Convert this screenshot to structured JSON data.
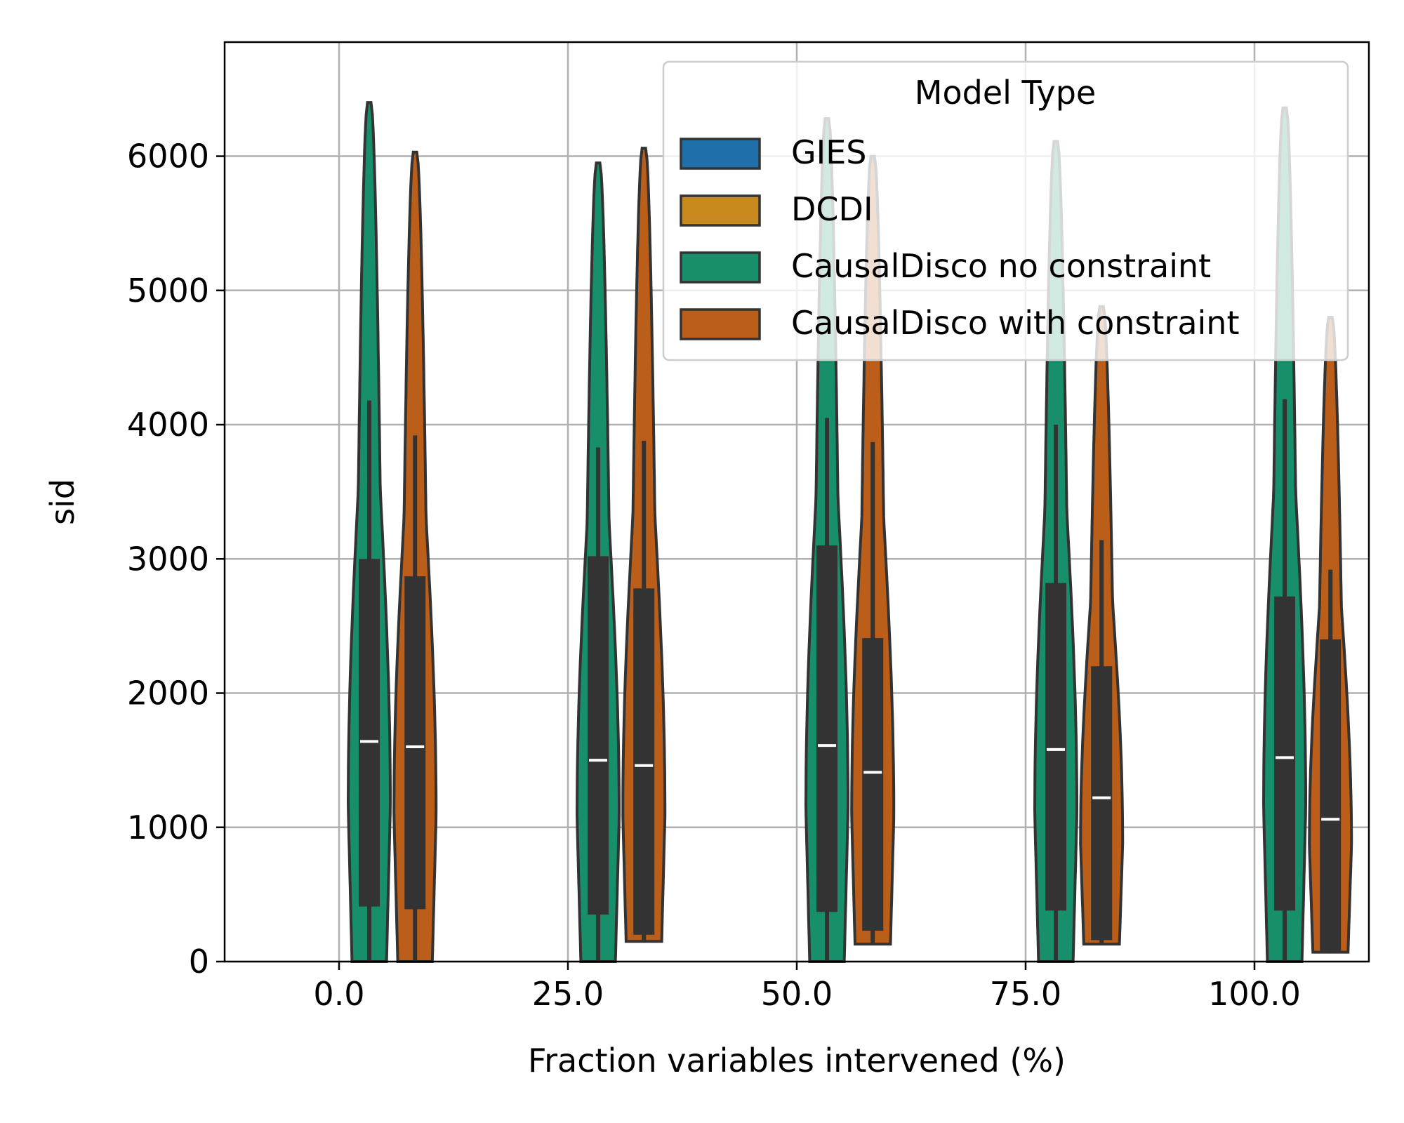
{
  "chart_data": {
    "type": "violin",
    "xlabel": "Fraction variables intervened (%)",
    "ylabel": "sid",
    "ylim": [
      0,
      6850
    ],
    "yticks": [
      0,
      1000,
      2000,
      3000,
      4000,
      5000,
      6000
    ],
    "categories": [
      "0.0",
      "25.0",
      "50.0",
      "75.0",
      "100.0"
    ],
    "grid": true,
    "legend": {
      "title": "Model Type",
      "placement": "top-right",
      "entries": [
        {
          "label": "GIES",
          "color": "#1f6fa8"
        },
        {
          "label": "DCDI",
          "color": "#c8891e"
        },
        {
          "label": "CausalDisco no constraint",
          "color": "#178f6a"
        },
        {
          "label": "CausalDisco with constraint",
          "color": "#ba5e1a"
        }
      ]
    },
    "series": [
      {
        "name": "CausalDisco no constraint",
        "color": "#178f6a",
        "stats": [
          {
            "max": 6400,
            "whisker_high": 4180,
            "q3": 3000,
            "median": 1640,
            "q1": 410,
            "min": 0
          },
          {
            "max": 5950,
            "whisker_high": 3830,
            "q3": 3020,
            "median": 1500,
            "q1": 350,
            "min": 0
          },
          {
            "max": 6280,
            "whisker_high": 4050,
            "q3": 3100,
            "median": 1610,
            "q1": 370,
            "min": 0
          },
          {
            "max": 6110,
            "whisker_high": 4000,
            "q3": 2820,
            "median": 1580,
            "q1": 380,
            "min": 0
          },
          {
            "max": 6360,
            "whisker_high": 4190,
            "q3": 2720,
            "median": 1520,
            "q1": 380,
            "min": 0
          }
        ]
      },
      {
        "name": "CausalDisco with constraint",
        "color": "#ba5e1a",
        "stats": [
          {
            "max": 6030,
            "whisker_high": 3920,
            "q3": 2870,
            "median": 1600,
            "q1": 390,
            "min": 0
          },
          {
            "max": 6060,
            "whisker_high": 3880,
            "q3": 2780,
            "median": 1460,
            "q1": 200,
            "min": 150
          },
          {
            "max": 6000,
            "whisker_high": 3870,
            "q3": 2410,
            "median": 1410,
            "q1": 230,
            "min": 130
          },
          {
            "max": 4880,
            "whisker_high": 3140,
            "q3": 2200,
            "median": 1220,
            "q1": 160,
            "min": 130
          },
          {
            "max": 4800,
            "whisker_high": 2920,
            "q3": 2400,
            "median": 1060,
            "q1": 80,
            "min": 70
          }
        ]
      }
    ]
  }
}
